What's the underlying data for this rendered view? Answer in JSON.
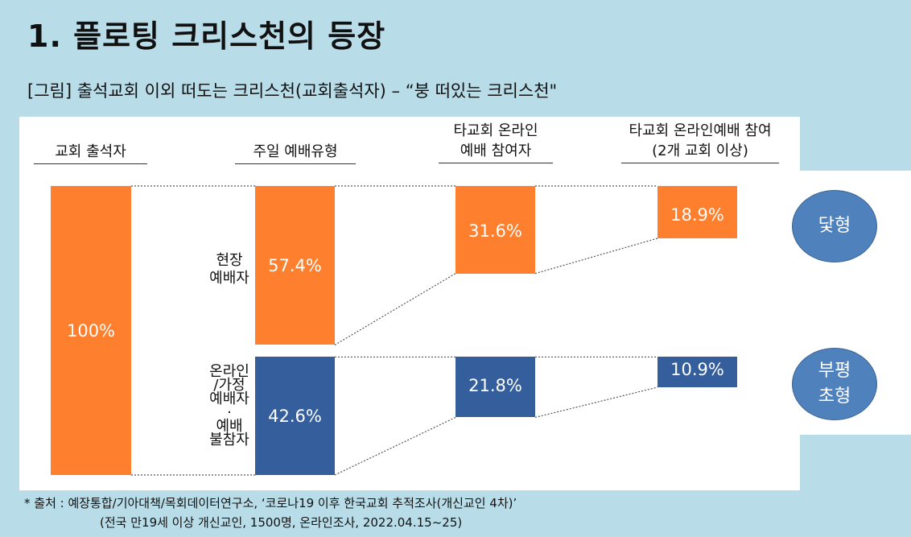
{
  "title": "1. 플로팅 크리스천의 등장",
  "subtitle": "[그림] 출석교회 이외 떠도는 크리스천(교회출석자) – “붕 떠있는 크리스천\"",
  "colors": {
    "orange": "#fe7f2d",
    "blue": "#355e9c",
    "circle": "#4f81bd"
  },
  "chart_data": {
    "type": "bar",
    "columns": [
      {
        "header": "교회 출석자",
        "segments": [
          {
            "label": "",
            "value": 100,
            "display": "100%"
          }
        ]
      },
      {
        "header": "주일 예배유형",
        "segments": [
          {
            "label": "현장\n예배자",
            "value": 57.4,
            "display": "57.4%"
          },
          {
            "label": "온라인\n/가정\n예배자\n·\n예배\n불참자",
            "value": 42.6,
            "display": "42.6%"
          }
        ]
      },
      {
        "header": "타교회 온라인\n예배 참여자",
        "segments": [
          {
            "label": "",
            "value": 31.6,
            "display": "31.6%"
          },
          {
            "label": "",
            "value": 21.8,
            "display": "21.8%"
          }
        ]
      },
      {
        "header": "타교회 온라인예배 참여\n(2개 교회 이상)",
        "segments": [
          {
            "label": "",
            "value": 18.9,
            "display": "18.9%"
          },
          {
            "label": "",
            "value": 10.9,
            "display": "10.9%"
          }
        ]
      }
    ]
  },
  "types": [
    {
      "label": "닻형"
    },
    {
      "label": "부평\n초형"
    }
  ],
  "source": {
    "line1": "* 출처 : 예장통합/기아대책/목회데이터연구소, ‘코로나19 이후 한국교회 추적조사(개신교인 4차)’",
    "line2": "(전국 만19세 이상 개신교인, 1500명, 온라인조사, 2022.04.15~25)"
  }
}
